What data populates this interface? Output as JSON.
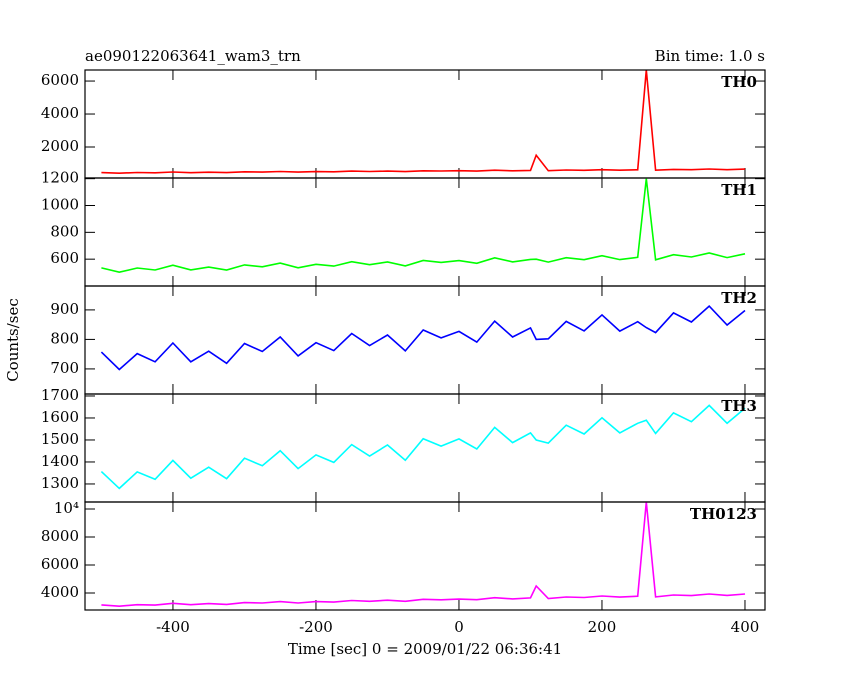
{
  "chart_data": {
    "type": "line",
    "title": "ae090122063641_wam3_trn",
    "subtitle": "Bin time: 1.0 s",
    "xlabel": "Time [sec] 0 = 2009/01/22 06:36:41",
    "ylabel": "Counts/sec",
    "x": [
      -500,
      -475,
      -450,
      -425,
      -400,
      -375,
      -350,
      -325,
      -300,
      -275,
      -250,
      -225,
      -200,
      -175,
      -150,
      -125,
      -100,
      -75,
      -50,
      -25,
      0,
      25,
      50,
      75,
      100,
      108,
      125,
      150,
      175,
      200,
      225,
      250,
      262,
      275,
      300,
      325,
      350,
      375,
      400
    ],
    "xlim": [
      -523,
      428
    ],
    "xticks": [
      -400,
      -200,
      0,
      200,
      400
    ],
    "series": [
      {
        "name": "TH0",
        "color": "#ff0000",
        "ylim": [
          120,
          6670
        ],
        "yticks": [
          2000,
          4000,
          6000
        ],
        "values": [
          448,
          412,
          451,
          436,
          481,
          443,
          470,
          446,
          494,
          479,
          515,
          476,
          509,
          494,
          537,
          513,
          540,
          507,
          558,
          543,
          561,
          540,
          591,
          559,
          583,
          1500,
          562,
          604,
          586,
          625,
          592,
          616,
          6670,
          595,
          644,
          626,
          665,
          626,
          662
        ]
      },
      {
        "name": "TH1",
        "color": "#00ff00",
        "ylim": [
          400,
          1205
        ],
        "yticks": [
          600,
          800,
          1000,
          1200
        ],
        "values": [
          535,
          503,
          534,
          519,
          555,
          520,
          541,
          519,
          557,
          543,
          571,
          536,
          562,
          548,
          581,
          559,
          579,
          550,
          590,
          576,
          589,
          569,
          610,
          580,
          598,
          600,
          578,
          611,
          596,
          626,
          597,
          614,
          1200,
          595,
          633,
          616,
          646,
          612,
          640
        ]
      },
      {
        "name": "TH2",
        "color": "#0000ff",
        "ylim": [
          615,
          981
        ],
        "yticks": [
          700,
          800,
          900
        ],
        "values": [
          757,
          698,
          752,
          724,
          788,
          724,
          760,
          719,
          786,
          759,
          808,
          744,
          789,
          762,
          820,
          779,
          815,
          761,
          832,
          805,
          827,
          791,
          862,
          808,
          839,
          800,
          802,
          861,
          829,
          883,
          828,
          860,
          840,
          823,
          890,
          859,
          913,
          849,
          898
        ]
      },
      {
        "name": "TH3",
        "color": "#00ffff",
        "ylim": [
          1218,
          1709
        ],
        "yticks": [
          1300,
          1400,
          1500,
          1600,
          1700
        ],
        "values": [
          1356,
          1280,
          1355,
          1321,
          1407,
          1326,
          1376,
          1324,
          1417,
          1383,
          1451,
          1370,
          1432,
          1398,
          1479,
          1427,
          1477,
          1408,
          1506,
          1472,
          1505,
          1459,
          1557,
          1488,
          1532,
          1500,
          1486,
          1567,
          1527,
          1601,
          1532,
          1576,
          1590,
          1530,
          1623,
          1583,
          1657,
          1576,
          1644
        ]
      },
      {
        "name": "TH0123",
        "color": "#ff00ff",
        "ylim": [
          2786,
          10500
        ],
        "yticks": [
          4000,
          6000,
          8000,
          {
            "value": 10000,
            "label": "10⁴"
          }
        ],
        "values": [
          3148,
          3058,
          3168,
          3135,
          3261,
          3163,
          3241,
          3184,
          3318,
          3284,
          3386,
          3288,
          3383,
          3349,
          3467,
          3409,
          3488,
          3406,
          3548,
          3514,
          3568,
          3519,
          3661,
          3579,
          3649,
          4500,
          3600,
          3718,
          3676,
          3786,
          3704,
          3775,
          10500,
          3725,
          3859,
          3817,
          3928,
          3830,
          3932
        ]
      }
    ]
  }
}
